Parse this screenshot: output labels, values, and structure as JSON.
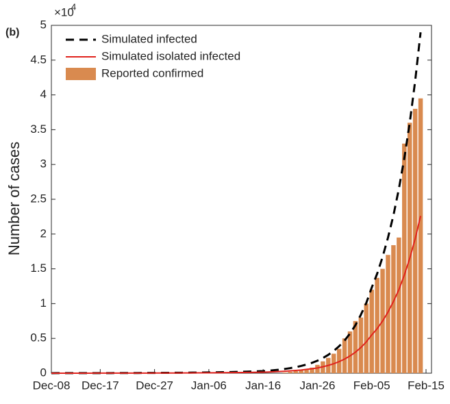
{
  "chart_data": {
    "type": "combo",
    "panel_label": "(b)",
    "y_label": "Number of cases",
    "y_scale_label": {
      "base": "×10",
      "exponent": "4"
    },
    "categories": [
      "Dec-08",
      null,
      null,
      null,
      null,
      null,
      null,
      null,
      null,
      "Dec-17",
      null,
      null,
      null,
      null,
      null,
      null,
      null,
      null,
      null,
      "Dec-27",
      null,
      null,
      null,
      null,
      null,
      null,
      null,
      null,
      null,
      "Jan-06",
      null,
      null,
      null,
      null,
      null,
      null,
      null,
      null,
      null,
      "Jan-16",
      null,
      null,
      null,
      null,
      null,
      null,
      null,
      null,
      null,
      "Jan-26",
      null,
      null,
      null,
      null,
      null,
      null,
      null,
      null,
      null,
      "Feb-05",
      null,
      null,
      null,
      null,
      null,
      null,
      null,
      null,
      null,
      "Feb-15"
    ],
    "ylim": [
      0,
      5
    ],
    "yticks": [
      0,
      0.5,
      1,
      1.5,
      2,
      2.5,
      3,
      3.5,
      4,
      4.5,
      5
    ],
    "series": [
      {
        "name": "Simulated infected",
        "type": "line",
        "color": "#000000",
        "dashed": true,
        "values": [
          0.0006,
          0.00067,
          0.00074,
          0.00082,
          0.0009,
          0.001,
          0.0011,
          0.0012,
          0.0014,
          0.0015,
          0.0017,
          0.0018,
          0.002,
          0.0022,
          0.0025,
          0.0027,
          0.003,
          0.0033,
          0.0037,
          0.0041,
          0.0045,
          0.005,
          0.0055,
          0.0061,
          0.0067,
          0.0074,
          0.0082,
          0.009,
          0.01,
          0.011,
          0.012,
          0.0135,
          0.015,
          0.0165,
          0.018,
          0.02,
          0.022,
          0.0245,
          0.027,
          0.03,
          0.036,
          0.043,
          0.051,
          0.061,
          0.073,
          0.087,
          0.104,
          0.125,
          0.149,
          0.18,
          0.218,
          0.264,
          0.32,
          0.388,
          0.47,
          0.57,
          0.69,
          0.84,
          1.01,
          1.23,
          1.43,
          1.67,
          1.95,
          2.27,
          2.65,
          3.09,
          3.6,
          4.2,
          4.9,
          null
        ]
      },
      {
        "name": "Simulated isolated infected",
        "type": "line",
        "color": "#e0221c",
        "dashed": false,
        "values": [
          0.0003,
          0.00033,
          0.00037,
          0.00041,
          0.00045,
          0.0005,
          0.00055,
          0.0006,
          0.00067,
          0.00074,
          0.0008,
          0.0009,
          0.001,
          0.0011,
          0.0012,
          0.0014,
          0.0015,
          0.0017,
          0.0018,
          0.002,
          0.0022,
          0.0025,
          0.0027,
          0.003,
          0.0033,
          0.0037,
          0.004,
          0.0045,
          0.005,
          0.0055,
          0.0061,
          0.0067,
          0.0074,
          0.0082,
          0.009,
          0.01,
          0.011,
          0.0122,
          0.0135,
          0.015,
          0.0176,
          0.0207,
          0.0243,
          0.0286,
          0.0336,
          0.0395,
          0.046,
          0.055,
          0.064,
          0.075,
          0.092,
          0.112,
          0.136,
          0.166,
          0.203,
          0.248,
          0.302,
          0.369,
          0.45,
          0.55,
          0.64,
          0.75,
          0.88,
          1.03,
          1.2,
          1.41,
          1.65,
          1.93,
          2.26,
          null
        ]
      },
      {
        "name": "Reported confirmed",
        "type": "bar",
        "color": "#d98a4f",
        "values": [
          null,
          null,
          null,
          null,
          null,
          null,
          null,
          null,
          null,
          null,
          null,
          null,
          null,
          null,
          null,
          null,
          null,
          null,
          null,
          null,
          null,
          null,
          null,
          null,
          null,
          null,
          null,
          null,
          null,
          null,
          null,
          null,
          null,
          null,
          null,
          null,
          null,
          null,
          null,
          null,
          null,
          null,
          null,
          0.01,
          0.02,
          0.03,
          0.04,
          0.05,
          0.08,
          0.12,
          0.17,
          0.22,
          0.28,
          0.35,
          0.5,
          0.6,
          0.75,
          0.8,
          1.0,
          1.2,
          1.37,
          1.5,
          1.7,
          1.84,
          1.95,
          3.3,
          3.6,
          3.8,
          3.95,
          null
        ]
      }
    ],
    "legend": "upper-left"
  }
}
